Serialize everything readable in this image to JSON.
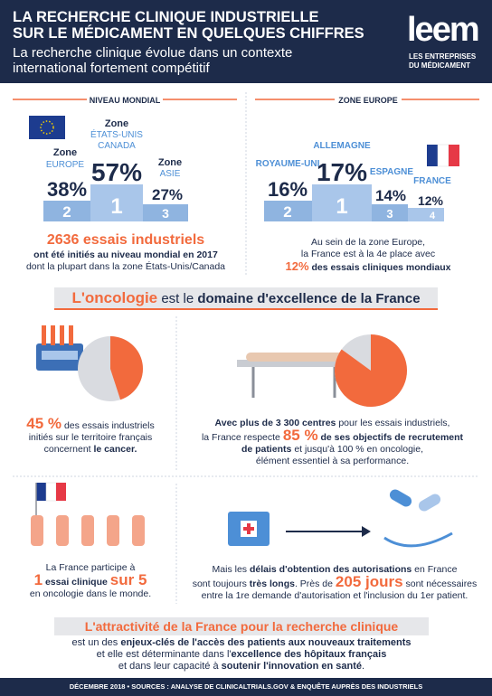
{
  "header": {
    "title": [
      "LA RECHERCHE CLINIQUE INDUSTRIELLE",
      "SUR LE MÉDICAMENT EN QUELQUES CHIFFRES"
    ],
    "subtitle": [
      "La recherche clinique évolue dans un contexte",
      "international fortement compétitif"
    ],
    "logo": "leem",
    "logo_tagline": [
      "LES ENTREPRISES",
      "DU MÉDICAMENT"
    ]
  },
  "world": {
    "heading": "NIVEAU MONDIAL",
    "podium": [
      {
        "zone": "Zone",
        "region": [
          "EUROPE"
        ],
        "share": "38%",
        "rank": "2"
      },
      {
        "zone": "Zone",
        "region": [
          "ÉTATS-UNIS",
          "CANADA"
        ],
        "share": "57%",
        "rank": "1"
      },
      {
        "zone": "Zone",
        "region": [
          "ASIE"
        ],
        "share": "27%",
        "rank": "3"
      }
    ],
    "headline": "2636 essais industriels",
    "text": [
      "ont été initiés au niveau mondial en 2017",
      "dont la plupart dans la zone États-Unis/Canada"
    ]
  },
  "europe": {
    "heading": "ZONE EUROPE",
    "podium": [
      {
        "region": "ROYAUME-UNI",
        "share": "16%",
        "rank": "2"
      },
      {
        "region": "ALLEMAGNE",
        "share": "17%",
        "rank": "1"
      },
      {
        "region": "ESPAGNE",
        "share": "14%",
        "rank": "3"
      },
      {
        "region": "FRANCE",
        "share": "12%",
        "rank": "4"
      }
    ],
    "text": [
      "Au sein de la zone Europe,",
      "la France est à la 4e place avec"
    ],
    "highlight": "12%",
    "highlight_text": "des essais cliniques mondiaux"
  },
  "oncology": {
    "heading": [
      "L'oncologie",
      "est le",
      "domaine d'excellence de la France"
    ],
    "cancer": {
      "share": {
        "value": 45,
        "label": "45 %"
      },
      "text": [
        "des essais industriels",
        "initiés sur le territoire français",
        "concernent",
        "le cancer."
      ]
    },
    "centres": {
      "share": {
        "value": 85,
        "label": "85 %"
      },
      "text": [
        "Avec plus de 3 300 centres",
        "pour les essais industriels,",
        "la France respecte",
        "de ses objectifs de recrutement",
        "de patients",
        "et jusqu'à 100 % en oncologie,",
        "élément essentiel à sa performance."
      ]
    },
    "participation": {
      "text": [
        "La France participe à",
        "1",
        "essai clinique",
        "sur 5",
        "en oncologie dans le monde."
      ]
    },
    "delays": {
      "text": [
        "Mais les",
        "délais d'obtention des autorisations",
        "en France",
        "sont toujours",
        "très longs",
        ". Près de",
        "205 jours",
        "sont nécessaires",
        "entre la 1re demande d'autorisation et l'inclusion du 1er patient."
      ]
    }
  },
  "conclusion": {
    "title": "L'attractivité de la France pour la recherche clinique",
    "text": [
      "est un des",
      "enjeux-clés de l'accès des patients aux nouveaux traitements",
      "et elle est déterminante dans l'",
      "excellence des hôpitaux français",
      "et dans leur capacité à",
      "soutenir l'innovation en santé",
      "."
    ]
  },
  "footer": "DÉCEMBRE 2018 • SOURCES : ANALYSE DE CLINICALTRIALS.GOV & ENQUÊTE AUPRÈS DES INDUSTRIELS"
}
